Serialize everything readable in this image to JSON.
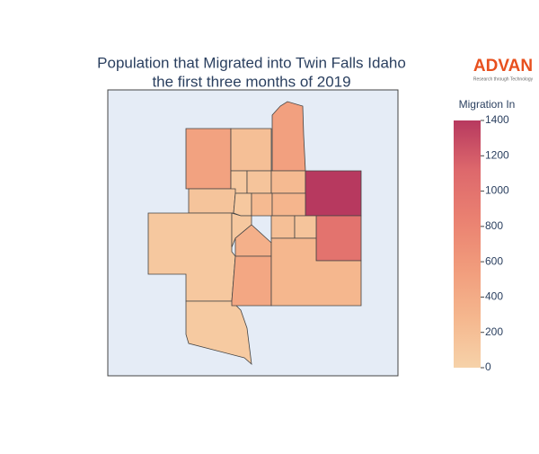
{
  "chart_data": {
    "type": "choropleth",
    "title": "Population that Migrated into Twin Falls Idaho",
    "subtitle": "the first three months of 2019",
    "colorbar_title": "Migration In",
    "values": [
      500,
      200,
      520,
      100,
      150,
      250,
      1400,
      1000,
      150,
      100,
      250,
      300,
      100,
      80,
      100,
      350,
      450,
      200,
      150,
      280
    ],
    "zlim": [
      0,
      1400
    ],
    "zticks": [
      0,
      200,
      400,
      600,
      800,
      1000,
      1200,
      1400
    ],
    "colorscale": [
      [
        0,
        "#f6d2a9"
      ],
      [
        0.2,
        "#f5b78e"
      ],
      [
        0.4,
        "#f19c7c"
      ],
      [
        0.6,
        "#ea8171"
      ],
      [
        0.8,
        "#dd686c"
      ],
      [
        1,
        "#b7395f"
      ]
    ]
  },
  "logo": {
    "name": "ADVAN",
    "tagline": "Research through Technology"
  }
}
